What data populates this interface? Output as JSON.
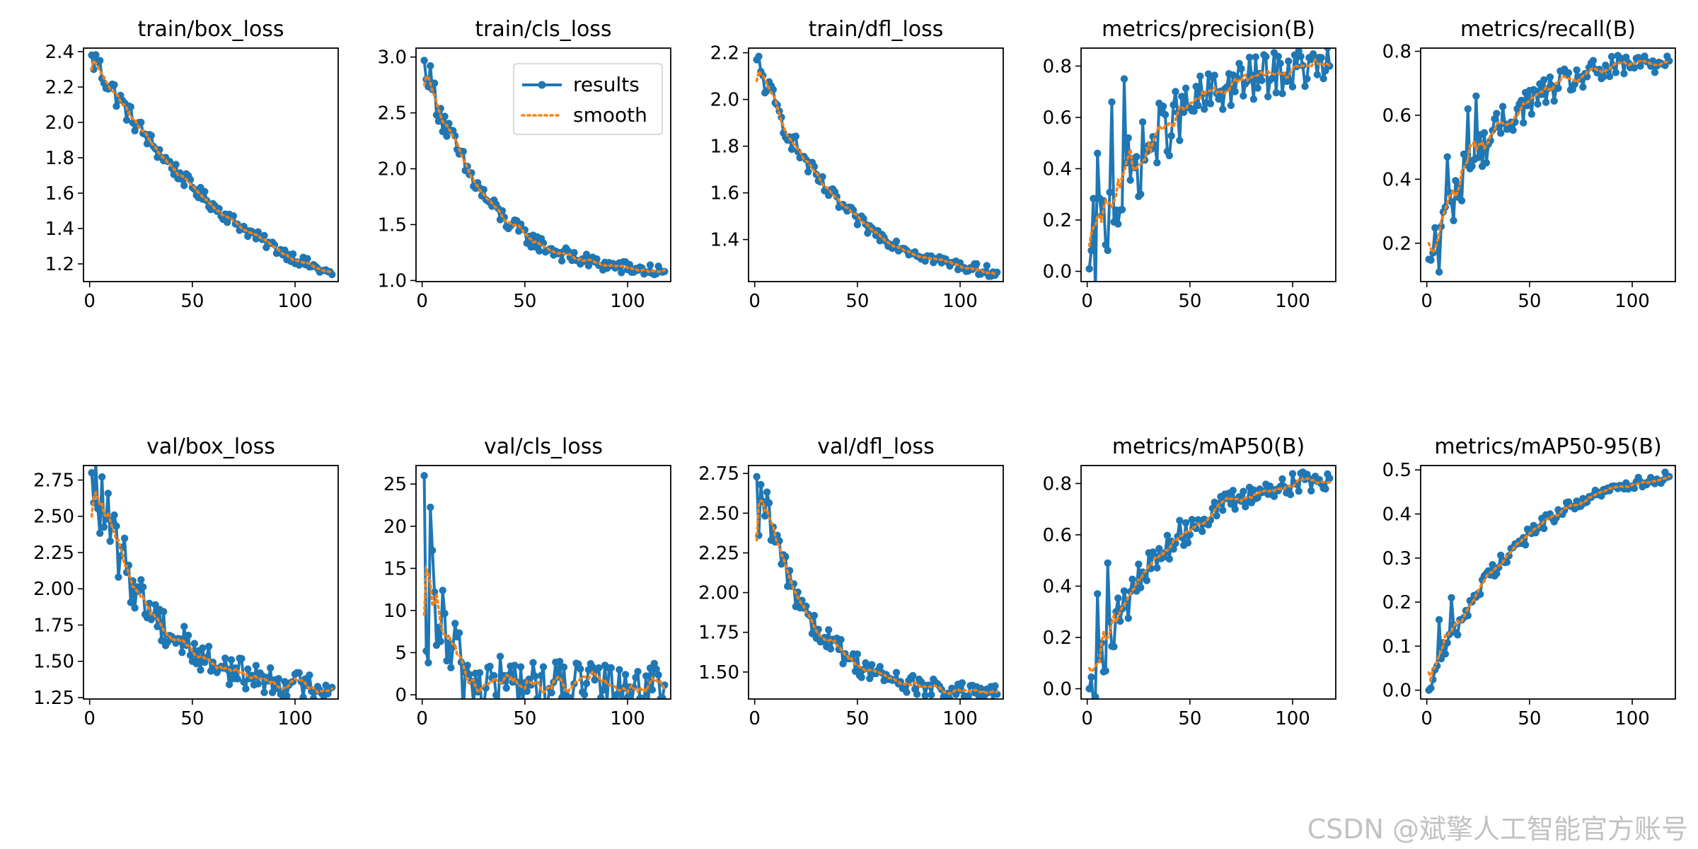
{
  "figure": {
    "watermark": "CSDN @斌擎人工智能官方账号"
  },
  "legend": {
    "entries": [
      "results",
      "smooth"
    ],
    "location": "top-right",
    "panel": "train/cls_loss"
  },
  "colors": {
    "results": "#1f77b4",
    "smooth": "#ff7f0e",
    "axis": "#000000"
  },
  "chart_data": [
    {
      "type": "line",
      "title": "train/box_loss",
      "xlim": [
        -3,
        121
      ],
      "ylim": [
        1.1,
        2.42
      ],
      "xticks": [
        "0",
        "50",
        "100"
      ],
      "yticks": [
        "1.2",
        "1.4",
        "1.6",
        "1.8",
        "2.0",
        "2.2",
        "2.4"
      ],
      "curve": {
        "start": 2.38,
        "end": 1.14,
        "shape": "decay",
        "k": 1.5,
        "noise": 0.012,
        "spikes": [
          [
            2,
            2.3
          ],
          [
            4,
            2.34
          ]
        ]
      },
      "smooth": {
        "start": 2.3,
        "end": 1.15
      }
    },
    {
      "type": "line",
      "title": "train/cls_loss",
      "xlim": [
        -3,
        121
      ],
      "ylim": [
        0.99,
        3.08
      ],
      "xticks": [
        "0",
        "50",
        "100"
      ],
      "yticks": [
        "1.0",
        "1.5",
        "2.0",
        "2.5",
        "3.0"
      ],
      "curve": {
        "start": 2.97,
        "end": 1.08,
        "shape": "decay",
        "k": 4.0,
        "noise": 0.015,
        "spikes": [
          [
            2,
            2.8
          ]
        ]
      },
      "smooth": {
        "start": 2.75,
        "end": 1.09
      }
    },
    {
      "type": "line",
      "title": "train/dfl_loss",
      "xlim": [
        -3,
        121
      ],
      "ylim": [
        1.22,
        2.22
      ],
      "xticks": [
        "0",
        "50",
        "100"
      ],
      "yticks": [
        "1.4",
        "1.6",
        "1.8",
        "2.0",
        "2.2"
      ],
      "curve": {
        "start": 2.17,
        "end": 1.26,
        "shape": "decay",
        "k": 3.0,
        "noise": 0.012,
        "spikes": [
          [
            1,
            2.06
          ],
          [
            3,
            2.12
          ]
        ]
      },
      "smooth": {
        "start": 2.08,
        "end": 1.27
      }
    },
    {
      "type": "line",
      "title": "metrics/precision(B)",
      "xlim": [
        -3,
        121
      ],
      "ylim": [
        -0.04,
        0.87
      ],
      "xticks": [
        "0",
        "50",
        "100"
      ],
      "yticks": [
        "0.0",
        "0.2",
        "0.4",
        "0.6",
        "0.8"
      ],
      "curve": {
        "start": 0.01,
        "end": 0.8,
        "shape": "rise",
        "k": 3.5,
        "noise": 0.05,
        "spikes": [
          [
            5,
            0.46
          ],
          [
            12,
            0.66
          ],
          [
            18,
            0.75
          ],
          [
            22,
            0.44
          ]
        ]
      },
      "smooth": {
        "start": 0.1,
        "end": 0.79
      }
    },
    {
      "type": "line",
      "title": "metrics/recall(B)",
      "xlim": [
        -3,
        121
      ],
      "ylim": [
        0.08,
        0.81
      ],
      "xticks": [
        "0",
        "50",
        "100"
      ],
      "yticks": [
        "0.2",
        "0.4",
        "0.6",
        "0.8"
      ],
      "curve": {
        "start": 0.15,
        "end": 0.77,
        "shape": "rise",
        "k": 3.5,
        "noise": 0.03,
        "spikes": [
          [
            6,
            0.11
          ],
          [
            10,
            0.47
          ],
          [
            20,
            0.62
          ],
          [
            24,
            0.66
          ]
        ]
      },
      "smooth": {
        "start": 0.2,
        "end": 0.76
      }
    },
    {
      "type": "line",
      "title": "val/box_loss",
      "xlim": [
        -3,
        121
      ],
      "ylim": [
        1.24,
        2.85
      ],
      "xticks": [
        "0",
        "50",
        "100"
      ],
      "yticks": [
        "1.25",
        "1.50",
        "1.75",
        "2.00",
        "2.25",
        "2.50",
        "2.75"
      ],
      "curve": {
        "start": 2.8,
        "end": 1.32,
        "shape": "decay",
        "k": 4.0,
        "noise": 0.03,
        "spikes": [
          [
            32,
            1.89
          ],
          [
            46,
            1.74
          ]
        ]
      },
      "smooth": {
        "start": 2.5,
        "end": 1.33
      }
    },
    {
      "type": "line",
      "title": "val/cls_loss",
      "xlim": [
        -3,
        121
      ],
      "ylim": [
        -0.5,
        27.2
      ],
      "xticks": [
        "0",
        "50",
        "100"
      ],
      "yticks": [
        "0",
        "5",
        "10",
        "15",
        "20",
        "25"
      ],
      "curve": {
        "start": 26.0,
        "end": 1.15,
        "shape": "decay",
        "k": 18.0,
        "noise": 0.05,
        "spikes": [
          [
            1,
            26.0
          ],
          [
            2,
            5.2
          ],
          [
            3,
            3.8
          ]
        ]
      },
      "smooth": {
        "start": 9.5,
        "end": 1.2
      }
    },
    {
      "type": "line",
      "title": "val/dfl_loss",
      "xlim": [
        -3,
        121
      ],
      "ylim": [
        1.33,
        2.8
      ],
      "xticks": [
        "0",
        "50",
        "100"
      ],
      "yticks": [
        "1.50",
        "1.75",
        "2.00",
        "2.25",
        "2.50",
        "2.75"
      ],
      "curve": {
        "start": 2.73,
        "end": 1.36,
        "shape": "decay",
        "k": 4.5,
        "noise": 0.02,
        "spikes": [
          [
            2,
            2.36
          ],
          [
            32,
            1.69
          ]
        ]
      },
      "smooth": {
        "start": 2.33,
        "end": 1.37
      }
    },
    {
      "type": "line",
      "title": "metrics/mAP50(B)",
      "xlim": [
        -3,
        121
      ],
      "ylim": [
        -0.04,
        0.87
      ],
      "xticks": [
        "0",
        "50",
        "100"
      ],
      "yticks": [
        "0.0",
        "0.2",
        "0.4",
        "0.6",
        "0.8"
      ],
      "curve": {
        "start": 0.0,
        "end": 0.82,
        "shape": "rise",
        "k": 3.2,
        "noise": 0.025,
        "spikes": [
          [
            5,
            0.37
          ],
          [
            10,
            0.49
          ],
          [
            14,
            0.3
          ]
        ]
      },
      "smooth": {
        "start": 0.08,
        "end": 0.81
      }
    },
    {
      "type": "line",
      "title": "metrics/mAP50-95(B)",
      "xlim": [
        -3,
        121
      ],
      "ylim": [
        -0.02,
        0.51
      ],
      "xticks": [
        "0",
        "50",
        "100"
      ],
      "yticks": [
        "0.0",
        "0.1",
        "0.2",
        "0.3",
        "0.4",
        "0.5"
      ],
      "curve": {
        "start": 0.0,
        "end": 0.485,
        "shape": "rise",
        "k": 2.8,
        "noise": 0.012,
        "spikes": [
          [
            6,
            0.16
          ],
          [
            12,
            0.21
          ],
          [
            48,
            0.33
          ]
        ]
      },
      "smooth": {
        "start": 0.04,
        "end": 0.48
      }
    }
  ]
}
